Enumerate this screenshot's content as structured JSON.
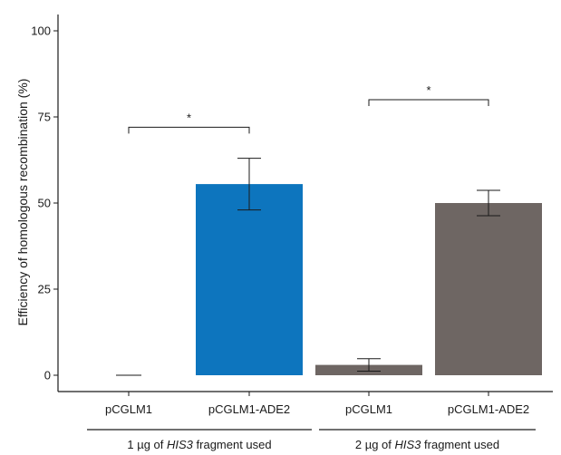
{
  "chart_data": {
    "type": "bar",
    "ylabel": "Efficiency of homologous recombination (%)",
    "xlabel": "",
    "ylim": [
      0,
      100
    ],
    "yticks": [
      0,
      25,
      50,
      75,
      100
    ],
    "grid": false,
    "categories": [
      "pCGLM1",
      "pCGLM1-ADE2",
      "pCGLM1",
      "pCGLM1-ADE2"
    ],
    "values": [
      0,
      55.5,
      3,
      50
    ],
    "errors": [
      0,
      7.5,
      1.8,
      3.7
    ],
    "colors": [
      "#0d75be",
      "#0d75be",
      "#6e6663",
      "#6e6663"
    ],
    "groups": [
      {
        "prefix": "1 µg of ",
        "italic": "HIS3",
        "suffix": " fragment used",
        "categories": [
          0,
          1
        ]
      },
      {
        "prefix": "2 µg of ",
        "italic": "HIS3",
        "suffix": " fragment used",
        "categories": [
          2,
          3
        ]
      }
    ],
    "significance": [
      {
        "from": 0,
        "to": 1,
        "y": 72,
        "label": "*"
      },
      {
        "from": 2,
        "to": 3,
        "y": 80,
        "label": "*"
      }
    ]
  }
}
